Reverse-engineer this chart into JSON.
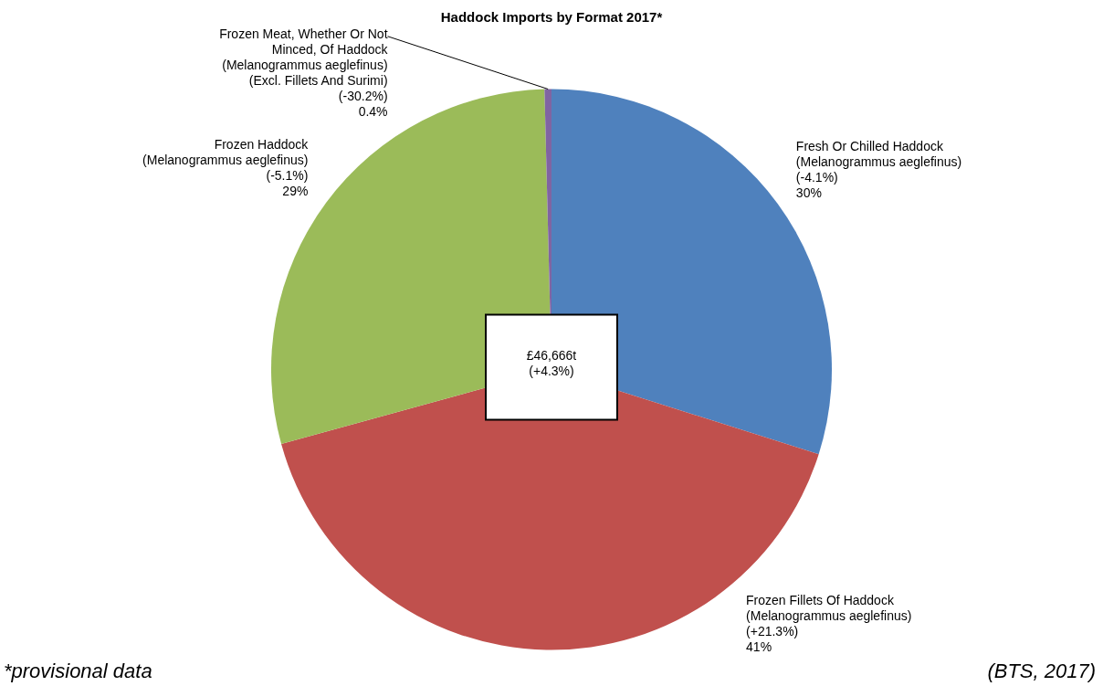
{
  "chart_data": {
    "type": "pie",
    "title": "Haddock Imports by Format 2017*",
    "categories": [
      "Fresh Or Chilled Haddock\n(Melanogrammus  aeglefinus)\n(-4.1%)",
      "Frozen Fillets Of Haddock\n(Melanogrammus  aeglefinus)\n(+21.3%)",
      "Frozen Haddock\n(Melanogrammus  aeglefinus)\n(-5.1%)",
      "Frozen Meat, Whether Or Not\nMinced, Of Haddock\n(Melanogrammus aeglefinus)\n(Excl. Fillets And Surimi)\n(-30.2%)"
    ],
    "values": [
      30,
      41,
      29,
      0.4
    ],
    "value_labels": [
      "30%",
      "41%",
      "29%",
      "0.4%"
    ],
    "colors": [
      "#4f81bd",
      "#c0504d",
      "#9bbb59",
      "#8064a2"
    ],
    "annotations": [
      "£46,666t\n(+4.3%)",
      "*provisional data",
      "(BTS, 2017)"
    ]
  }
}
